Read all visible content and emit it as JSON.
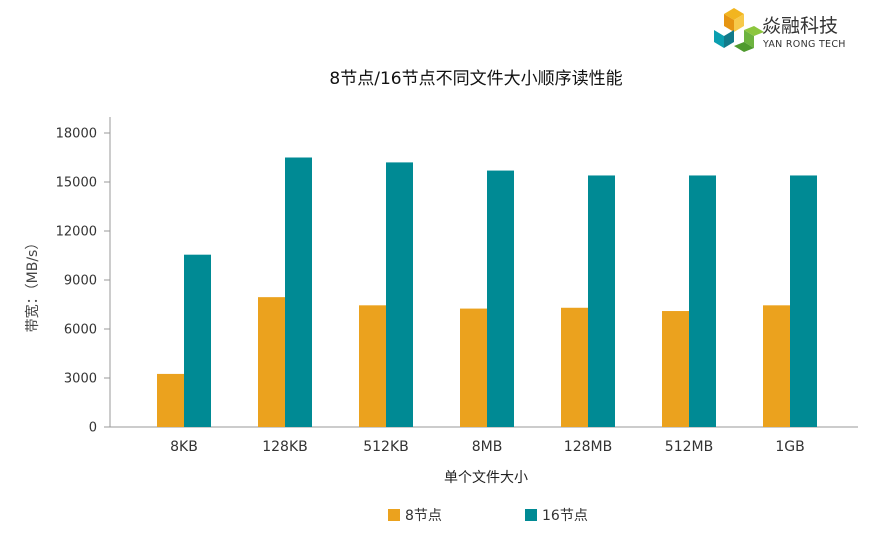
{
  "logo": {
    "name_cn": "焱融科技",
    "name_en": "YAN RONG TECH"
  },
  "chart_data": {
    "type": "bar",
    "title": "8节点/16节点不同文件大小顺序读性能",
    "xlabel": "单个文件大小",
    "ylabel": "带宽：（MB/s）",
    "categories": [
      "8KB",
      "128KB",
      "512KB",
      "8MB",
      "128MB",
      "512MB",
      "1GB"
    ],
    "series": [
      {
        "name": "8节点",
        "color": "#EBA21E",
        "values": [
          3250,
          7950,
          7450,
          7250,
          7300,
          7100,
          7450
        ]
      },
      {
        "name": "16节点",
        "color": "#008A94",
        "values": [
          10550,
          16500,
          16200,
          15700,
          15400,
          15400,
          15400
        ]
      }
    ],
    "yticks": [
      0,
      3000,
      6000,
      9000,
      12000,
      15000,
      18000
    ],
    "ylim": [
      0,
      18000
    ],
    "grid": false,
    "legend": "bottom-center"
  }
}
